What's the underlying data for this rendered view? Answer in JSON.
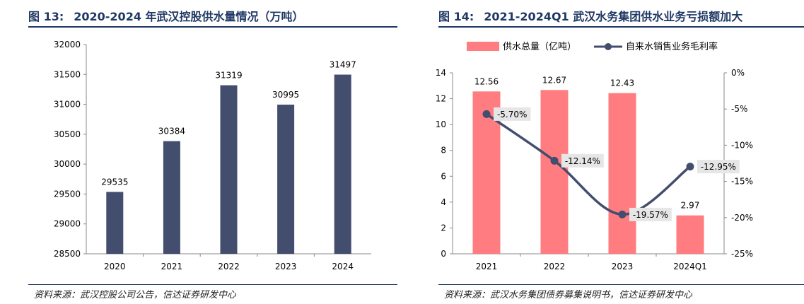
{
  "left": {
    "figure_label": "图 13:",
    "figure_title": "2020-2024 年武汉控股供水量情况（万吨）",
    "source": "资料来源：武汉控股公司公告，信达证券研发中心"
  },
  "right": {
    "figure_label": "图 14:",
    "figure_title": "2021-2024Q1 武汉水务集团供水业务亏损额加大",
    "source": "资料来源：武汉水务集团债券募集说明书，信达证券研发中心"
  },
  "chart_data": [
    {
      "type": "bar",
      "categories": [
        "2020",
        "2021",
        "2022",
        "2023",
        "2024"
      ],
      "values": [
        29535,
        30384,
        31319,
        30995,
        31497
      ],
      "data_labels": [
        "29535",
        "30384",
        "31319",
        "30995",
        "31497"
      ],
      "ylim": [
        28500,
        32000
      ],
      "yticks": [
        "28500",
        "29000",
        "29500",
        "30000",
        "30500",
        "31000",
        "31500",
        "32000"
      ],
      "bar_color": "#434d6e",
      "grid": false,
      "legend": "none"
    },
    {
      "type": "bar",
      "categories": [
        "2021",
        "2022",
        "2023",
        "2024Q1"
      ],
      "series": [
        {
          "name": "供水总量（亿吨）",
          "type": "bar",
          "axis": "left",
          "values": [
            12.56,
            12.67,
            12.43,
            2.97
          ],
          "data_labels": [
            "12.56",
            "12.67",
            "12.43",
            "2.97"
          ],
          "color": "#ff7c80"
        },
        {
          "name": "自来水销售业务毛利率",
          "type": "line",
          "axis": "right",
          "values": [
            -5.7,
            -12.14,
            -19.57,
            -12.95
          ],
          "data_labels": [
            "-5.70%",
            "-12.14%",
            "-19.57%",
            "-12.95%"
          ],
          "color": "#434d6e"
        }
      ],
      "ylim_left": [
        0,
        14
      ],
      "yticks_left": [
        "0",
        "2",
        "4",
        "6",
        "8",
        "10",
        "12",
        "14"
      ],
      "ylim_right": [
        -25,
        0
      ],
      "yticks_right": [
        "-25%",
        "-20%",
        "-15%",
        "-10%",
        "-5%",
        "0%"
      ],
      "grid": false,
      "legend": "top"
    }
  ]
}
